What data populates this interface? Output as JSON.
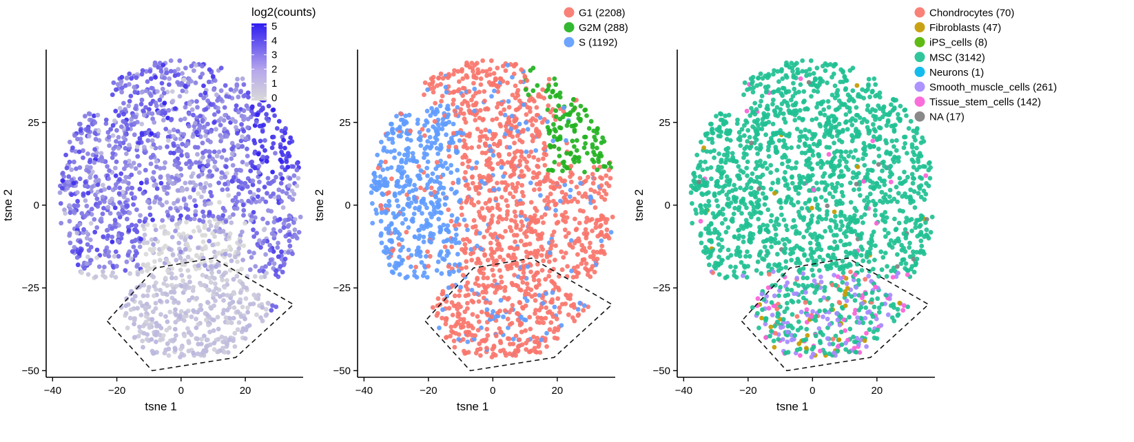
{
  "chart_data": [
    {
      "type": "scatter",
      "xlabel": "tsne 1",
      "ylabel": "tsne 2",
      "xlim": [
        -42,
        38
      ],
      "ylim": [
        -52,
        47
      ],
      "xticks": [
        -40,
        -20,
        0,
        20
      ],
      "yticks": [
        -50,
        -25,
        0,
        25
      ],
      "xtick_labels": [
        "−40",
        "−20",
        "0",
        "20"
      ],
      "ytick_labels": [
        "−50",
        "−25",
        "0",
        "25"
      ],
      "color_by": "continuous",
      "legend": {
        "title": "log2(counts)",
        "placement": "top-right",
        "ticks": [
          "5",
          "4",
          "3",
          "2",
          "1",
          "0"
        ],
        "range": [
          0,
          5
        ],
        "colors": [
          "#d9d9d9",
          "#2e1cf0"
        ]
      },
      "region_polygon": [
        [
          -23,
          -35
        ],
        [
          -9,
          -50
        ],
        [
          17,
          -46
        ],
        [
          35,
          -30
        ],
        [
          10,
          -16
        ],
        [
          -8,
          -19
        ]
      ]
    },
    {
      "type": "scatter",
      "xlabel": "tsne 1",
      "ylabel": "tsne 2",
      "xlim": [
        -42,
        38
      ],
      "ylim": [
        -52,
        47
      ],
      "xticks": [
        -40,
        -20,
        0,
        20
      ],
      "yticks": [
        -50,
        -25,
        0,
        25
      ],
      "xtick_labels": [
        "−40",
        "−20",
        "0",
        "20"
      ],
      "ytick_labels": [
        "−50",
        "−25",
        "0",
        "25"
      ],
      "color_by": "categorical",
      "legend": {
        "placement": "top-right",
        "entries": [
          {
            "label": "G1 (2208)",
            "color": "#f8766d"
          },
          {
            "label": "G2M (288)",
            "color": "#22b21f"
          },
          {
            "label": "S (1192)",
            "color": "#619cff"
          }
        ]
      },
      "region_polygon": [
        [
          -21,
          -35
        ],
        [
          -7,
          -50
        ],
        [
          19,
          -46
        ],
        [
          37,
          -30
        ],
        [
          12,
          -16
        ],
        [
          -6,
          -19
        ]
      ]
    },
    {
      "type": "scatter",
      "xlabel": "tsne 1",
      "ylabel": "tsne 2",
      "xlim": [
        -42,
        38
      ],
      "ylim": [
        -52,
        47
      ],
      "xticks": [
        -40,
        -20,
        0,
        20
      ],
      "yticks": [
        -50,
        -25,
        0,
        25
      ],
      "xtick_labels": [
        "−40",
        "−20",
        "0",
        "20"
      ],
      "ytick_labels": [
        "−50",
        "−25",
        "0",
        "25"
      ],
      "color_by": "categorical",
      "legend": {
        "placement": "top-right",
        "entries": [
          {
            "label": "Chondrocytes (70)",
            "color": "#f8766d"
          },
          {
            "label": "Fibroblasts (47)",
            "color": "#c49a00"
          },
          {
            "label": "iPS_cells (8)",
            "color": "#53b400"
          },
          {
            "label": "MSC (3142)",
            "color": "#1fc092"
          },
          {
            "label": "Neurons (1)",
            "color": "#00b6eb"
          },
          {
            "label": "Smooth_muscle_cells (261)",
            "color": "#a58aff"
          },
          {
            "label": "Tissue_stem_cells (142)",
            "color": "#fb61d7"
          },
          {
            "label": "NA (17)",
            "color": "#7f7f7f"
          }
        ]
      },
      "region_polygon": [
        [
          -22,
          -35
        ],
        [
          -8,
          -50
        ],
        [
          18,
          -46
        ],
        [
          36,
          -30
        ],
        [
          11,
          -16
        ],
        [
          -7,
          -19
        ]
      ]
    }
  ]
}
